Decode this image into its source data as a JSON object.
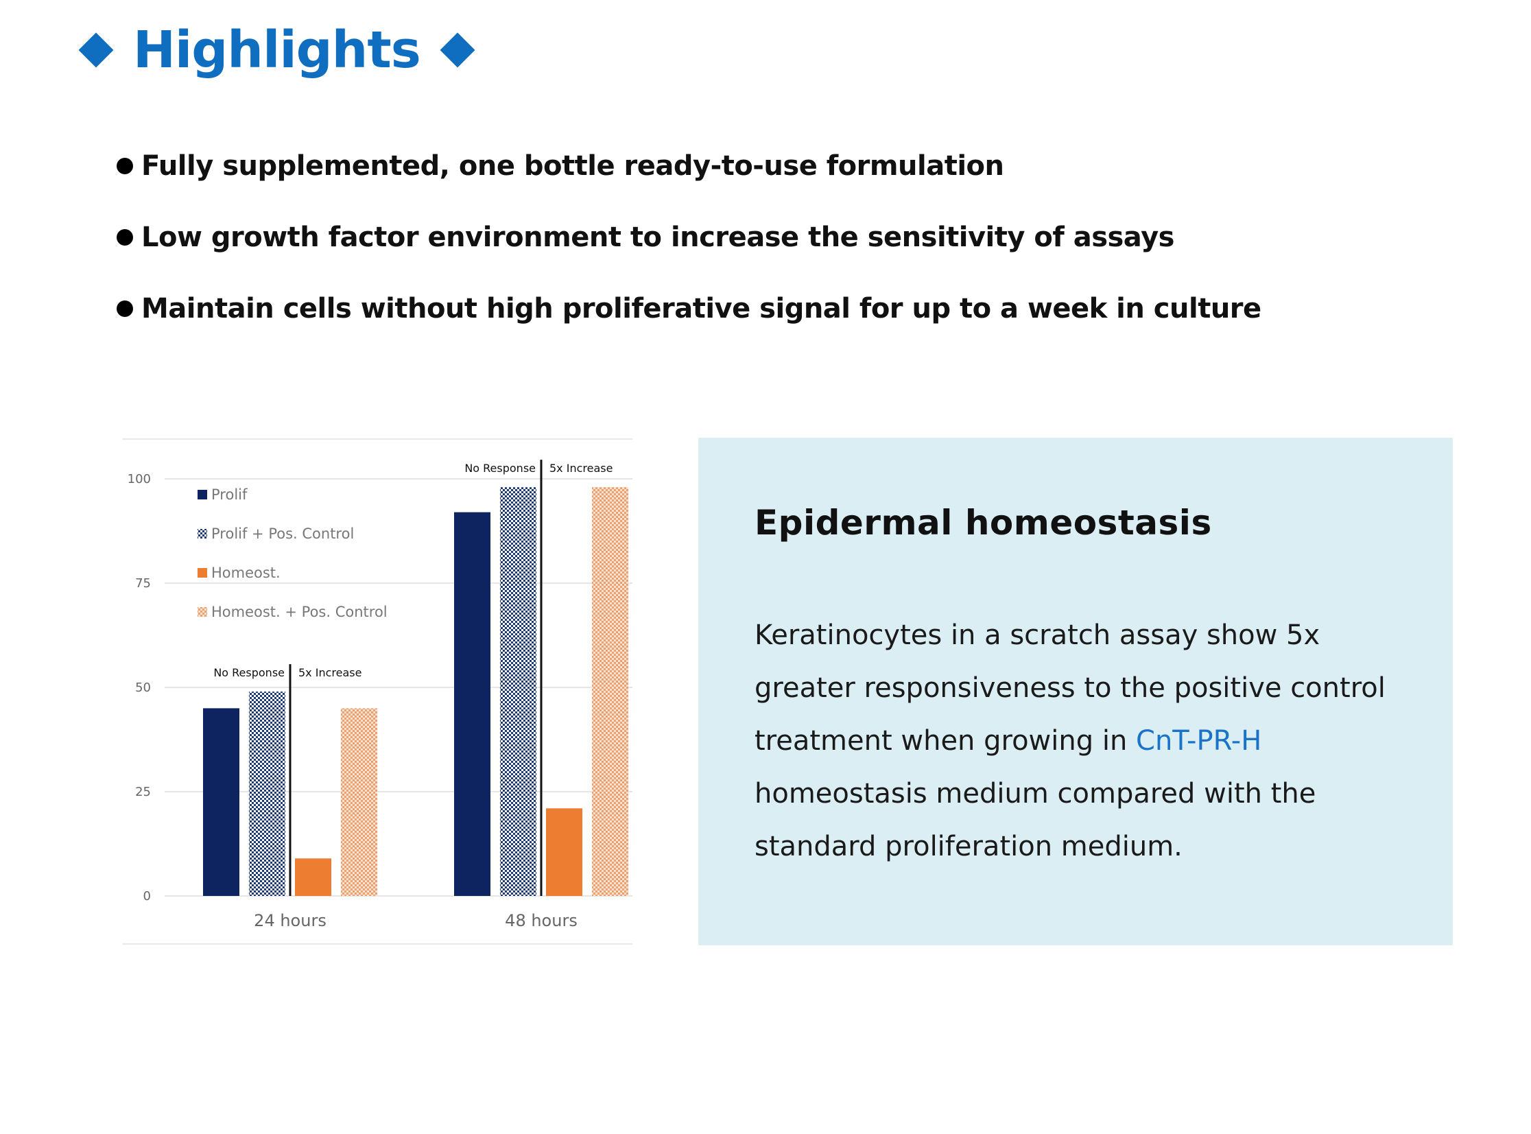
{
  "header": {
    "title": "Highlights"
  },
  "bullets": [
    "Fully supplemented, one bottle ready-to-use formulation",
    "Low growth factor environment to increase the sensitivity of assays",
    "Maintain cells without high proliferative signal for up to a week in culture"
  ],
  "chart_data": {
    "type": "bar",
    "categories": [
      "24 hours",
      "48 hours"
    ],
    "series": [
      {
        "name": "Prolif",
        "values": [
          45,
          92
        ],
        "color": "#0d2461",
        "pattern": "solid"
      },
      {
        "name": "Prolif + Pos. Control",
        "values": [
          49,
          98
        ],
        "color": "#1d3a78",
        "pattern": "checker"
      },
      {
        "name": "Homeost.",
        "values": [
          9,
          21
        ],
        "color": "#ed7d31",
        "pattern": "solid"
      },
      {
        "name": "Homeost. + Pos. Control",
        "values": [
          45,
          98
        ],
        "color": "#f0a070",
        "pattern": "checker"
      }
    ],
    "yticks": [
      0,
      25,
      50,
      75,
      100
    ],
    "ylim": [
      0,
      100
    ],
    "legend": "top-left",
    "grid": true,
    "annotations": {
      "no_response": "No Response",
      "five_x": "5x Increase"
    }
  },
  "panel": {
    "title": "Epidermal homeostasis",
    "body_before": "Keratinocytes in a scratch assay show 5x greater responsiveness to the positive control treatment when growing in ",
    "highlight": "CnT-PR-H",
    "body_after": " homeostasis medium compared with the standard proliferation medium."
  }
}
